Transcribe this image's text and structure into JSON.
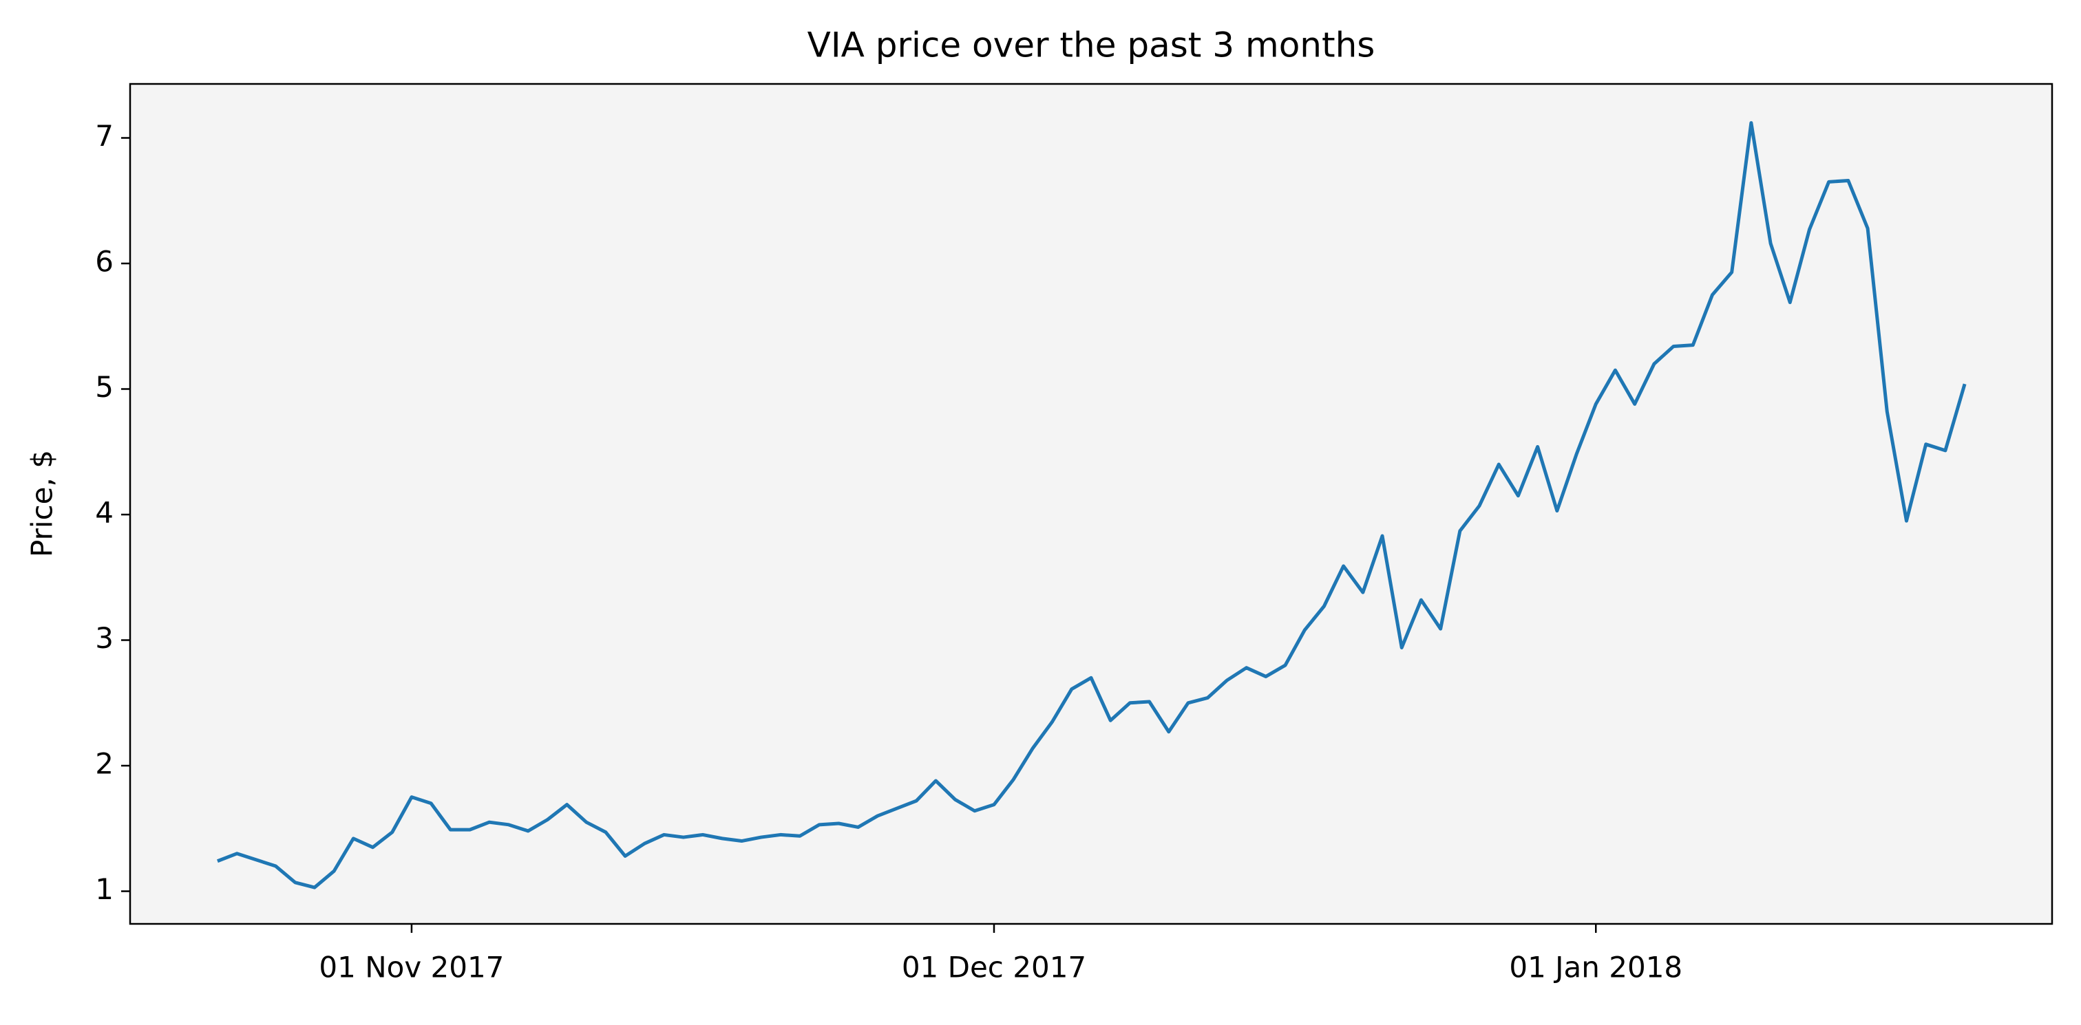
{
  "chart_data": {
    "type": "line",
    "title": "VIA price over the past 3 months",
    "ylabel": "Price, $",
    "x": [
      "2017-10-22",
      "2017-10-23",
      "2017-10-24",
      "2017-10-25",
      "2017-10-26",
      "2017-10-27",
      "2017-10-28",
      "2017-10-29",
      "2017-10-30",
      "2017-10-31",
      "2017-11-01",
      "2017-11-02",
      "2017-11-03",
      "2017-11-04",
      "2017-11-05",
      "2017-11-06",
      "2017-11-07",
      "2017-11-08",
      "2017-11-09",
      "2017-11-10",
      "2017-11-11",
      "2017-11-12",
      "2017-11-13",
      "2017-11-14",
      "2017-11-15",
      "2017-11-16",
      "2017-11-17",
      "2017-11-18",
      "2017-11-19",
      "2017-11-20",
      "2017-11-21",
      "2017-11-22",
      "2017-11-23",
      "2017-11-24",
      "2017-11-25",
      "2017-11-26",
      "2017-11-27",
      "2017-11-28",
      "2017-11-29",
      "2017-11-30",
      "2017-12-01",
      "2017-12-02",
      "2017-12-03",
      "2017-12-04",
      "2017-12-05",
      "2017-12-06",
      "2017-12-07",
      "2017-12-08",
      "2017-12-09",
      "2017-12-10",
      "2017-12-11",
      "2017-12-12",
      "2017-12-13",
      "2017-12-14",
      "2017-12-15",
      "2017-12-16",
      "2017-12-17",
      "2017-12-18",
      "2017-12-19",
      "2017-12-20",
      "2017-12-21",
      "2017-12-22",
      "2017-12-23",
      "2017-12-24",
      "2017-12-25",
      "2017-12-26",
      "2017-12-27",
      "2017-12-28",
      "2017-12-29",
      "2017-12-30",
      "2017-12-31",
      "2018-01-01",
      "2018-01-02",
      "2018-01-03",
      "2018-01-04",
      "2018-01-05",
      "2018-01-06",
      "2018-01-07",
      "2018-01-08",
      "2018-01-09",
      "2018-01-10",
      "2018-01-11",
      "2018-01-12",
      "2018-01-13",
      "2018-01-14",
      "2018-01-15",
      "2018-01-16",
      "2018-01-17",
      "2018-01-18",
      "2018-01-19",
      "2018-01-20"
    ],
    "series": [
      {
        "name": "VIA",
        "color": "#1f77b4",
        "values": [
          1.24,
          1.3,
          1.25,
          1.2,
          1.07,
          1.03,
          1.16,
          1.42,
          1.35,
          1.47,
          1.75,
          1.7,
          1.49,
          1.49,
          1.55,
          1.53,
          1.48,
          1.57,
          1.69,
          1.55,
          1.47,
          1.28,
          1.38,
          1.45,
          1.43,
          1.45,
          1.42,
          1.4,
          1.43,
          1.45,
          1.44,
          1.53,
          1.54,
          1.51,
          1.6,
          1.66,
          1.72,
          1.88,
          1.73,
          1.64,
          1.69,
          1.89,
          2.14,
          2.35,
          2.61,
          2.7,
          2.36,
          2.5,
          2.51,
          2.27,
          2.5,
          2.54,
          2.68,
          2.78,
          2.71,
          2.8,
          3.08,
          3.27,
          3.59,
          3.38,
          3.83,
          2.94,
          3.32,
          3.09,
          3.87,
          4.07,
          4.4,
          4.15,
          4.54,
          4.03,
          4.48,
          4.88,
          5.15,
          4.88,
          5.2,
          5.34,
          5.35,
          5.75,
          5.93,
          7.12,
          6.16,
          5.69,
          6.27,
          6.65,
          6.66,
          6.28,
          4.82,
          3.95,
          4.56,
          4.51,
          5.04
        ]
      }
    ],
    "xlim": [
      "2017-10-17T12:00:00Z",
      "2018-01-24T12:00:00Z"
    ],
    "xticks": [
      {
        "value": "2017-11-01",
        "label": "01 Nov 2017"
      },
      {
        "value": "2017-12-01",
        "label": "01 Dec 2017"
      },
      {
        "value": "2018-01-01",
        "label": "01 Jan 2018"
      }
    ],
    "ylim": [
      0.74,
      7.43
    ],
    "yticks": [
      1,
      2,
      3,
      4,
      5,
      6,
      7
    ],
    "grid": false,
    "facecolor": "#f4f4f4"
  }
}
